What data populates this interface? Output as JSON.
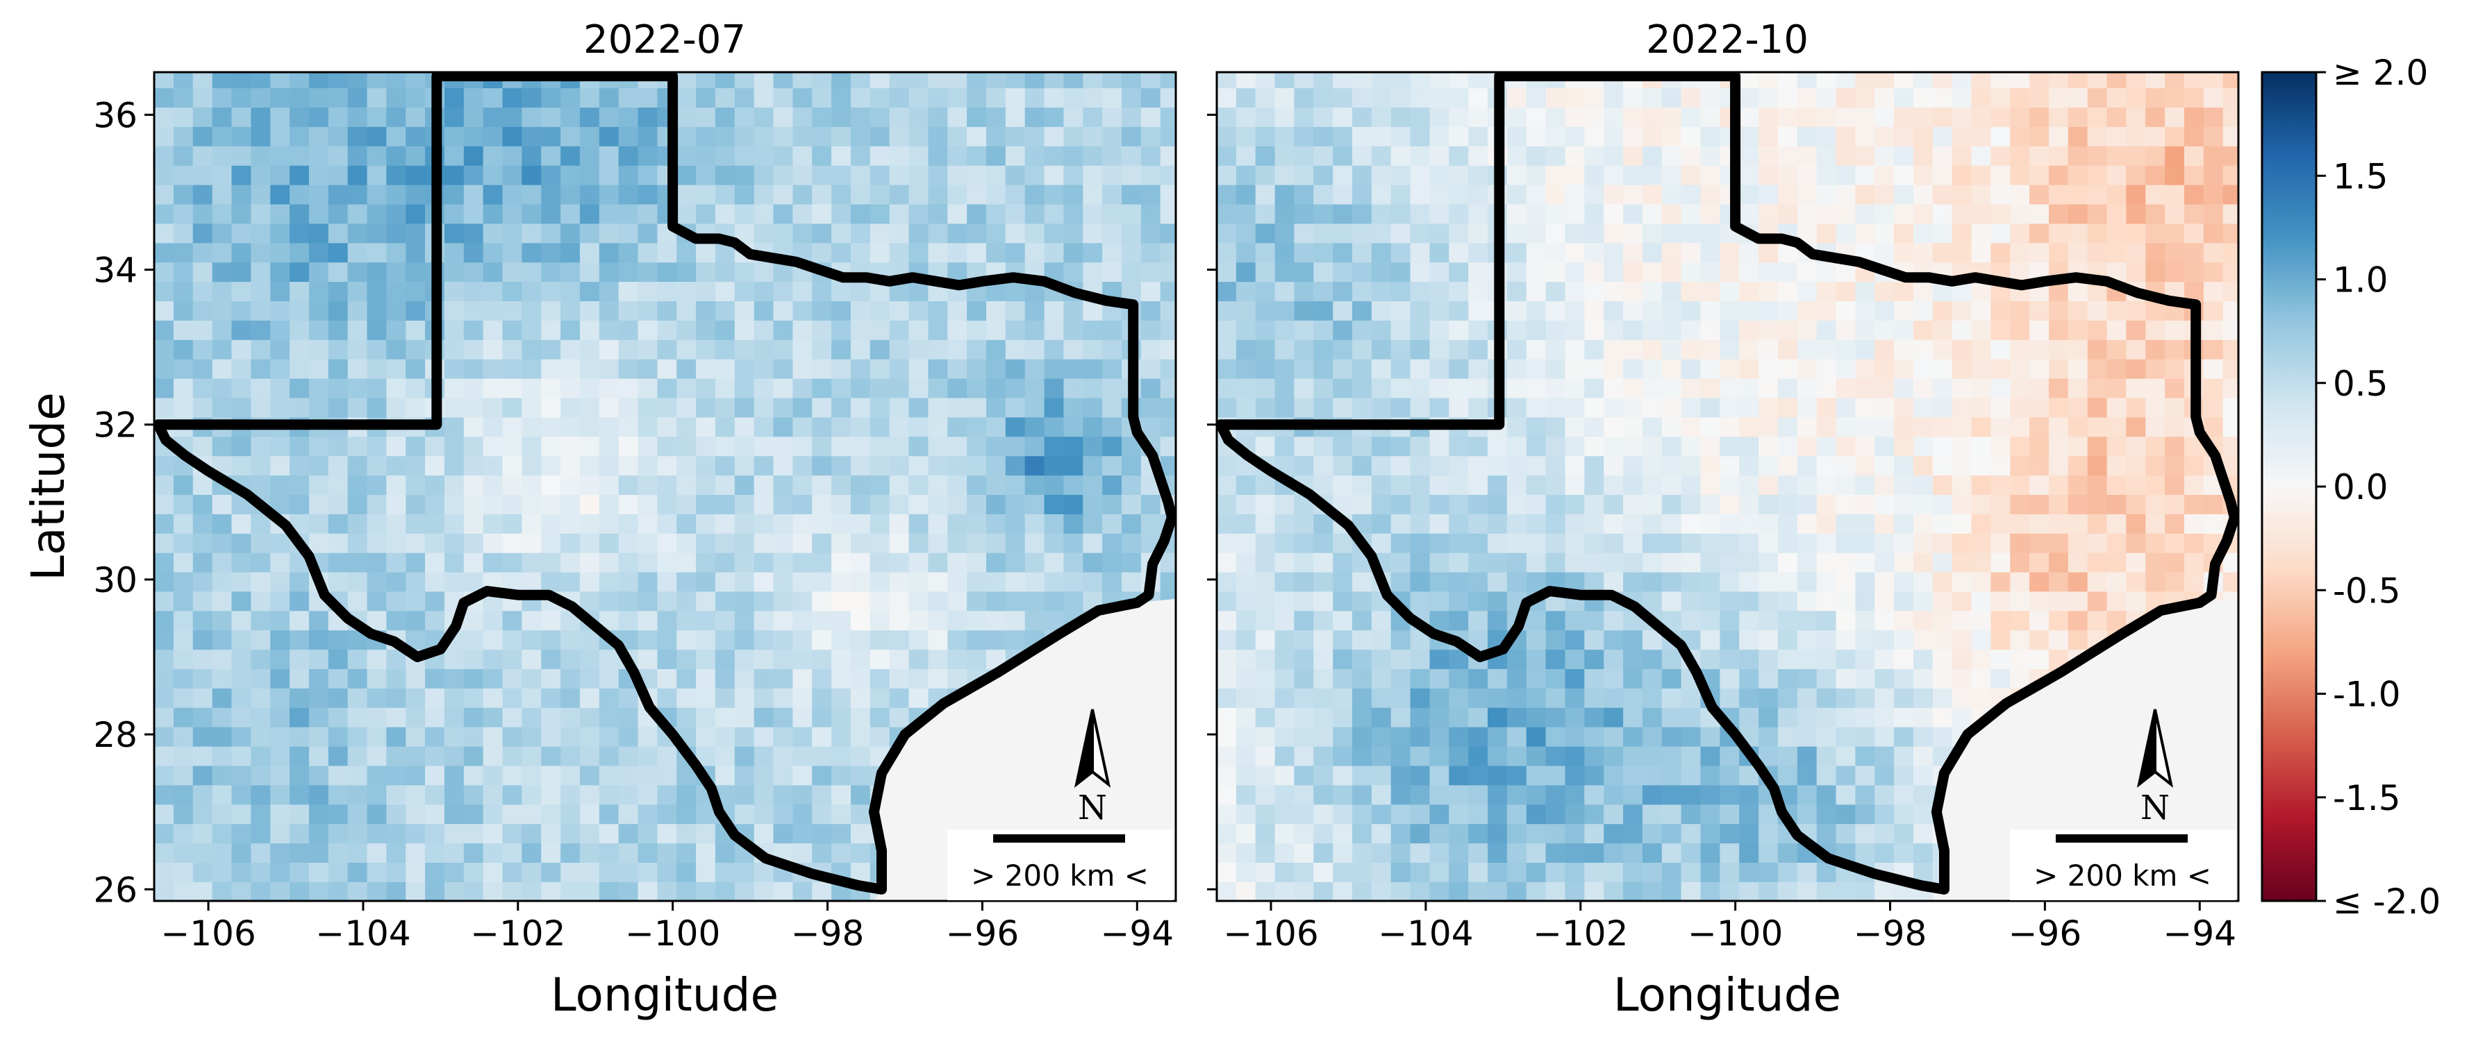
{
  "chart_data": [
    {
      "type": "heatmap",
      "title": "2022-07",
      "xlabel": "Longitude",
      "ylabel": "Latitude",
      "xlim": [
        -106.7,
        -93.5
      ],
      "ylim": [
        25.85,
        36.55
      ],
      "xticks": [
        -106,
        -104,
        -102,
        -100,
        -98,
        -96,
        -94
      ],
      "xtick_labels": [
        "−106",
        "−104",
        "−102",
        "−100",
        "−98",
        "−96",
        "−94"
      ],
      "yticks": [
        26,
        28,
        30,
        32,
        34,
        36
      ],
      "ytick_labels": [
        "26",
        "28",
        "30",
        "32",
        "34",
        "36"
      ],
      "grid": false,
      "grid_cell_deg": 0.25,
      "field": {
        "description_of_pattern": "mostly positive (blue) values; strongest in NM / OK panhandle and east Texas near (-95,31.5); near-zero values in central Texas",
        "base": 0.6,
        "features": [
          {
            "lon": -104.5,
            "lat": 35.0,
            "amp": 0.35,
            "radius": 2.2
          },
          {
            "lon": -101.5,
            "lat": 35.8,
            "amp": 0.35,
            "radius": 1.8
          },
          {
            "lon": -95.0,
            "lat": 31.6,
            "amp": 0.6,
            "radius": 0.9
          },
          {
            "lon": -101.5,
            "lat": 31.5,
            "amp": -0.45,
            "radius": 1.6
          },
          {
            "lon": -97.5,
            "lat": 29.6,
            "amp": -0.4,
            "radius": 1.3
          },
          {
            "lon": -105.0,
            "lat": 28.0,
            "amp": 0.2,
            "radius": 1.5
          }
        ]
      },
      "scalebar_label": "> 200 km <",
      "north_arrow_label": "N"
    },
    {
      "type": "heatmap",
      "title": "2022-10",
      "xlabel": "Longitude",
      "ylabel": "",
      "xlim": [
        -106.7,
        -93.5
      ],
      "ylim": [
        25.85,
        36.55
      ],
      "xticks": [
        -106,
        -104,
        -102,
        -100,
        -98,
        -96,
        -94
      ],
      "xtick_labels": [
        "−106",
        "−104",
        "−102",
        "−100",
        "−98",
        "−96",
        "−94"
      ],
      "yticks": [
        26,
        28,
        30,
        32,
        34,
        36
      ],
      "ytick_labels": [],
      "grid": false,
      "grid_cell_deg": 0.25,
      "field": {
        "description_of_pattern": "west and south positive (blue), northeast and east Texas negative (red), near zero in the middle",
        "base": 0.0,
        "features": [
          {
            "lon": -106.0,
            "lat": 34.0,
            "amp": 0.75,
            "radius": 3.0
          },
          {
            "lon": -103.0,
            "lat": 28.0,
            "amp": 0.95,
            "radius": 3.2
          },
          {
            "lon": -99.0,
            "lat": 27.0,
            "amp": 0.6,
            "radius": 2.0
          },
          {
            "lon": -94.5,
            "lat": 35.2,
            "amp": -0.55,
            "radius": 2.2
          },
          {
            "lon": -95.0,
            "lat": 31.3,
            "amp": -0.45,
            "radius": 1.8
          },
          {
            "lon": -96.0,
            "lat": 29.8,
            "amp": -0.25,
            "radius": 1.2
          }
        ]
      },
      "scalebar_label": "> 200 km <",
      "north_arrow_label": "N"
    }
  ],
  "colorbar": {
    "vmin": -2.0,
    "vmax": 2.0,
    "colormap": [
      "#67001f",
      "#b2182b",
      "#d6604d",
      "#f4a582",
      "#fddbc7",
      "#f7f7f7",
      "#d1e5f0",
      "#92c5de",
      "#4393c3",
      "#2166ac",
      "#053061"
    ],
    "ticks": [
      2.0,
      1.5,
      1.0,
      0.5,
      0.0,
      -0.5,
      -1.0,
      -1.5,
      -2.0
    ],
    "tick_labels": [
      "≥ 2.0",
      "1.5",
      "1.0",
      "0.5",
      "0.0",
      "-0.5",
      "-1.0",
      "-1.5",
      "≤ -2.0"
    ]
  },
  "colors": {
    "ocean": "#f4f4f4",
    "border": "#000000"
  },
  "boundary": {
    "texas_outline": [
      [
        -106.65,
        32.0
      ],
      [
        -106.55,
        31.8
      ],
      [
        -106.3,
        31.6
      ],
      [
        -106.0,
        31.4
      ],
      [
        -105.5,
        31.1
      ],
      [
        -105.0,
        30.7
      ],
      [
        -104.7,
        30.3
      ],
      [
        -104.5,
        29.8
      ],
      [
        -104.2,
        29.5
      ],
      [
        -103.9,
        29.3
      ],
      [
        -103.6,
        29.2
      ],
      [
        -103.3,
        29.0
      ],
      [
        -103.0,
        29.1
      ],
      [
        -102.8,
        29.4
      ],
      [
        -102.7,
        29.7
      ],
      [
        -102.4,
        29.85
      ],
      [
        -102.0,
        29.8
      ],
      [
        -101.6,
        29.8
      ],
      [
        -101.3,
        29.65
      ],
      [
        -101.0,
        29.4
      ],
      [
        -100.7,
        29.15
      ],
      [
        -100.5,
        28.8
      ],
      [
        -100.3,
        28.35
      ],
      [
        -100.0,
        28.0
      ],
      [
        -99.7,
        27.6
      ],
      [
        -99.5,
        27.3
      ],
      [
        -99.4,
        27.0
      ],
      [
        -99.2,
        26.7
      ],
      [
        -98.8,
        26.4
      ],
      [
        -98.2,
        26.2
      ],
      [
        -97.6,
        26.05
      ],
      [
        -97.3,
        26.0
      ],
      [
        -97.3,
        26.5
      ],
      [
        -97.4,
        27.0
      ],
      [
        -97.3,
        27.5
      ],
      [
        -97.0,
        28.0
      ],
      [
        -96.5,
        28.4
      ],
      [
        -95.8,
        28.8
      ],
      [
        -95.0,
        29.3
      ],
      [
        -94.5,
        29.6
      ],
      [
        -94.0,
        29.7
      ],
      [
        -93.85,
        29.8
      ],
      [
        -93.8,
        30.2
      ],
      [
        -93.65,
        30.5
      ],
      [
        -93.55,
        30.8
      ],
      [
        -93.6,
        31.0
      ],
      [
        -93.7,
        31.3
      ],
      [
        -93.8,
        31.6
      ],
      [
        -94.0,
        31.9
      ],
      [
        -94.05,
        32.1
      ],
      [
        -94.05,
        33.55
      ],
      [
        -94.4,
        33.6
      ],
      [
        -94.8,
        33.7
      ],
      [
        -95.2,
        33.85
      ],
      [
        -95.6,
        33.9
      ],
      [
        -96.0,
        33.85
      ],
      [
        -96.3,
        33.8
      ],
      [
        -96.6,
        33.85
      ],
      [
        -96.9,
        33.9
      ],
      [
        -97.2,
        33.85
      ],
      [
        -97.5,
        33.9
      ],
      [
        -97.8,
        33.9
      ],
      [
        -98.1,
        34.0
      ],
      [
        -98.4,
        34.1
      ],
      [
        -98.7,
        34.15
      ],
      [
        -99.0,
        34.2
      ],
      [
        -99.2,
        34.35
      ],
      [
        -99.4,
        34.4
      ],
      [
        -99.7,
        34.4
      ],
      [
        -100.0,
        34.56
      ],
      [
        -100.0,
        36.5
      ],
      [
        -103.05,
        36.5
      ],
      [
        -103.05,
        32.0
      ],
      [
        -106.65,
        32.0
      ]
    ],
    "ocean_polygon": [
      [
        -97.3,
        26.0
      ],
      [
        -97.3,
        26.5
      ],
      [
        -97.4,
        27.0
      ],
      [
        -97.3,
        27.5
      ],
      [
        -97.0,
        28.0
      ],
      [
        -96.5,
        28.4
      ],
      [
        -95.8,
        28.8
      ],
      [
        -95.0,
        29.3
      ],
      [
        -94.5,
        29.6
      ],
      [
        -94.0,
        29.7
      ],
      [
        -93.5,
        29.75
      ],
      [
        -93.5,
        25.85
      ],
      [
        -97.4,
        25.85
      ]
    ]
  }
}
